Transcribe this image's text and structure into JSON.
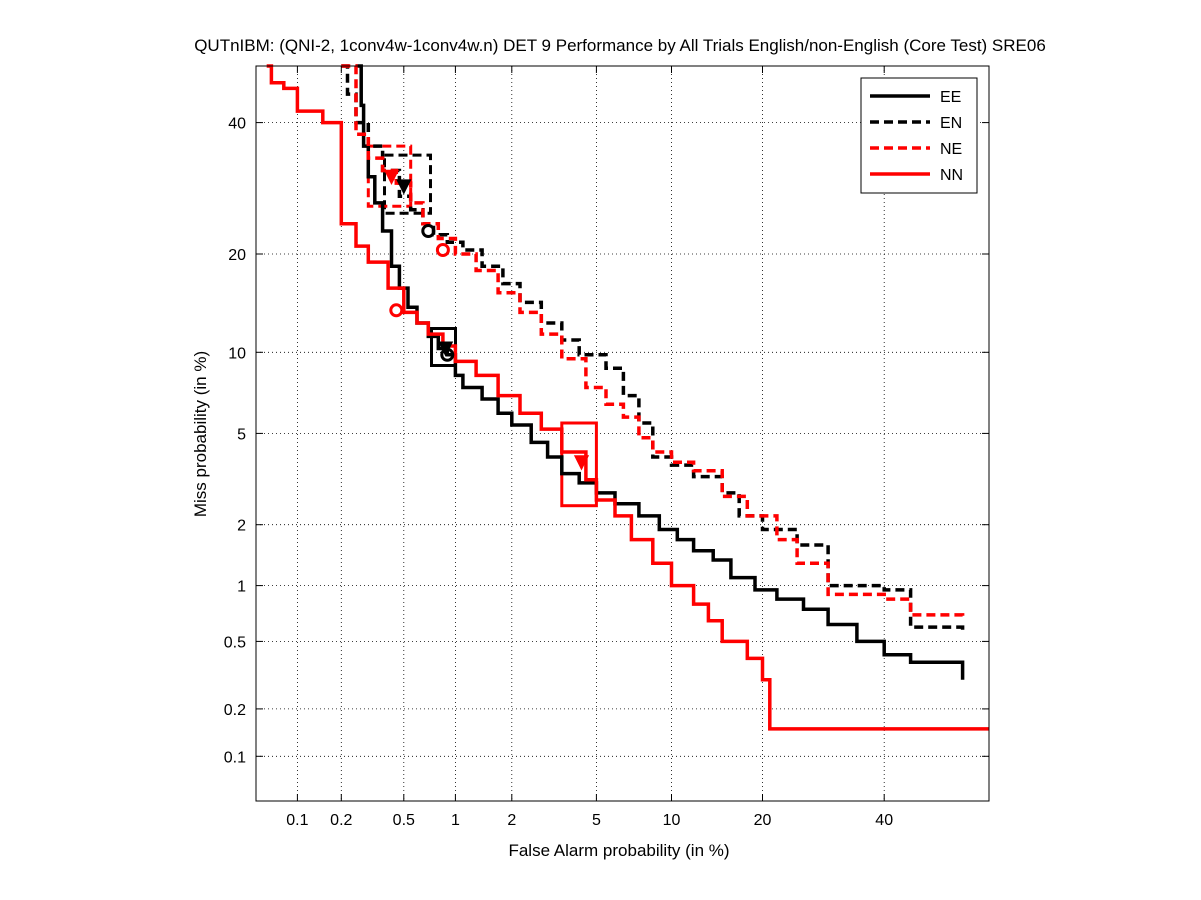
{
  "chart_data": {
    "type": "line",
    "title": "QUTnIBM: (QNI-2, 1conv4w-1conv4w.n) DET 9 Performance by All Trials English/non-English (Core Test) SRE06",
    "xlabel": "False Alarm probability (in %)",
    "ylabel": "Miss probability (in %)",
    "x_scale": "normal-deviate (probit)",
    "y_scale": "normal-deviate (probit)",
    "xlim": [
      0.05,
      60
    ],
    "ylim": [
      0.05,
      50
    ],
    "x_ticks": [
      0.1,
      0.2,
      0.5,
      1,
      2,
      5,
      10,
      20,
      40
    ],
    "x_tick_labels": [
      "0.1",
      "0.2",
      "0.5",
      "1",
      "2",
      "5",
      "10",
      "20",
      "40"
    ],
    "y_ticks": [
      0.1,
      0.2,
      0.5,
      1,
      2,
      5,
      10,
      20,
      40
    ],
    "y_tick_labels": [
      "0.1",
      "0.2",
      "0.5",
      "1",
      "2",
      "5",
      "10",
      "20",
      "40"
    ],
    "grid": true,
    "legend_position": "top-right",
    "series": [
      {
        "name": "EE",
        "color": "#000000",
        "dash": "solid",
        "points": [
          [
            0.25,
            50
          ],
          [
            0.27,
            43
          ],
          [
            0.28,
            36
          ],
          [
            0.3,
            31
          ],
          [
            0.33,
            27
          ],
          [
            0.37,
            23
          ],
          [
            0.42,
            18.5
          ],
          [
            0.47,
            16
          ],
          [
            0.53,
            14
          ],
          [
            0.6,
            12.5
          ],
          [
            0.7,
            11.3
          ],
          [
            0.8,
            10.3
          ],
          [
            0.9,
            9.8
          ],
          [
            1.0,
            8.3
          ],
          [
            1.1,
            7.5
          ],
          [
            1.4,
            6.8
          ],
          [
            1.7,
            6.0
          ],
          [
            2.0,
            5.4
          ],
          [
            2.5,
            4.6
          ],
          [
            3.0,
            4.0
          ],
          [
            3.5,
            3.4
          ],
          [
            4.2,
            3.1
          ],
          [
            5.0,
            2.8
          ],
          [
            6.0,
            2.5
          ],
          [
            7.5,
            2.2
          ],
          [
            9.0,
            1.9
          ],
          [
            10.5,
            1.7
          ],
          [
            12.0,
            1.5
          ],
          [
            14.0,
            1.35
          ],
          [
            16.0,
            1.1
          ],
          [
            19.0,
            0.95
          ],
          [
            22.0,
            0.85
          ],
          [
            26.0,
            0.75
          ],
          [
            30.0,
            0.62
          ],
          [
            35.0,
            0.5
          ],
          [
            40.0,
            0.42
          ],
          [
            45.0,
            0.38
          ],
          [
            55.0,
            0.3
          ]
        ]
      },
      {
        "name": "EN",
        "color": "#000000",
        "dash": "dashed",
        "points": [
          [
            0.2,
            50
          ],
          [
            0.22,
            45
          ],
          [
            0.25,
            40
          ],
          [
            0.3,
            36
          ],
          [
            0.37,
            32
          ],
          [
            0.47,
            28
          ],
          [
            0.55,
            26
          ],
          [
            0.65,
            24
          ],
          [
            0.75,
            22.5
          ],
          [
            0.9,
            21.5
          ],
          [
            1.1,
            20.5
          ],
          [
            1.4,
            18.5
          ],
          [
            1.8,
            16.5
          ],
          [
            2.2,
            14.5
          ],
          [
            2.8,
            12.5
          ],
          [
            3.5,
            11.0
          ],
          [
            4.2,
            9.8
          ],
          [
            5.5,
            8.8
          ],
          [
            6.5,
            7.0
          ],
          [
            7.5,
            5.5
          ],
          [
            8.5,
            4.0
          ],
          [
            10.0,
            3.7
          ],
          [
            12.0,
            3.3
          ],
          [
            15.0,
            2.8
          ],
          [
            17.0,
            2.2
          ],
          [
            20.0,
            1.9
          ],
          [
            25.0,
            1.6
          ],
          [
            30.0,
            1.0
          ],
          [
            40.0,
            0.95
          ],
          [
            45.0,
            0.6
          ],
          [
            55.0,
            0.58
          ]
        ]
      },
      {
        "name": "NE",
        "color": "#ff0000",
        "dash": "dashed",
        "points": [
          [
            0.2,
            50
          ],
          [
            0.25,
            38
          ],
          [
            0.3,
            34
          ],
          [
            0.37,
            32
          ],
          [
            0.45,
            30
          ],
          [
            0.55,
            27
          ],
          [
            0.65,
            24
          ],
          [
            0.8,
            22
          ],
          [
            1.0,
            20
          ],
          [
            1.3,
            18
          ],
          [
            1.7,
            15.5
          ],
          [
            2.2,
            13.5
          ],
          [
            2.8,
            11.5
          ],
          [
            3.5,
            9.5
          ],
          [
            4.5,
            7.5
          ],
          [
            5.5,
            6.5
          ],
          [
            6.5,
            5.8
          ],
          [
            7.5,
            4.8
          ],
          [
            8.5,
            4.2
          ],
          [
            10.0,
            3.8
          ],
          [
            12.0,
            3.5
          ],
          [
            15.0,
            2.7
          ],
          [
            18.0,
            2.2
          ],
          [
            22.0,
            1.7
          ],
          [
            25.0,
            1.3
          ],
          [
            30.0,
            0.9
          ],
          [
            40.0,
            0.85
          ],
          [
            45.0,
            0.7
          ],
          [
            55.0,
            0.68
          ]
        ]
      },
      {
        "name": "NN",
        "color": "#ff0000",
        "dash": "solid",
        "points": [
          [
            0.06,
            50
          ],
          [
            0.065,
            47
          ],
          [
            0.08,
            46
          ],
          [
            0.1,
            42
          ],
          [
            0.15,
            40
          ],
          [
            0.2,
            30
          ],
          [
            0.2,
            24
          ],
          [
            0.25,
            21
          ],
          [
            0.3,
            19
          ],
          [
            0.4,
            16
          ],
          [
            0.5,
            13.5
          ],
          [
            0.6,
            12.5
          ],
          [
            0.7,
            11.5
          ],
          [
            0.85,
            10.5
          ],
          [
            1.0,
            9.3
          ],
          [
            1.3,
            8.3
          ],
          [
            1.7,
            7.0
          ],
          [
            2.2,
            6.0
          ],
          [
            2.8,
            5.2
          ],
          [
            3.5,
            4.2
          ],
          [
            4.5,
            3.2
          ],
          [
            5.0,
            2.6
          ],
          [
            6.0,
            2.2
          ],
          [
            7.0,
            1.7
          ],
          [
            8.5,
            1.3
          ],
          [
            10.0,
            1.0
          ],
          [
            12.0,
            0.8
          ],
          [
            13.5,
            0.65
          ],
          [
            15.0,
            0.5
          ],
          [
            18.0,
            0.4
          ],
          [
            20.0,
            0.3
          ],
          [
            21.0,
            0.15
          ],
          [
            60.0,
            0.15
          ]
        ]
      }
    ],
    "markers": [
      {
        "series": "EN",
        "kind": "triangle",
        "x": 0.5,
        "y": 29.5,
        "color": "#000000"
      },
      {
        "series": "EN",
        "kind": "circle",
        "x": 0.7,
        "y": 23.0,
        "color": "#000000"
      },
      {
        "series": "NE",
        "kind": "triangle",
        "x": 0.42,
        "y": 31.0,
        "color": "#ff0000"
      },
      {
        "series": "NE",
        "kind": "circle",
        "x": 0.85,
        "y": 20.5,
        "color": "#ff0000"
      },
      {
        "series": "EE",
        "kind": "triangle",
        "x": 0.88,
        "y": 10.3,
        "color": "#000000"
      },
      {
        "series": "EE",
        "kind": "circle",
        "x": 0.9,
        "y": 9.8,
        "color": "#000000"
      },
      {
        "series": "NN",
        "kind": "circle",
        "x": 0.45,
        "y": 13.7,
        "color": "#ff0000"
      },
      {
        "series": "NN",
        "kind": "triangle",
        "x": 4.3,
        "y": 3.8,
        "color": "#ff0000"
      }
    ],
    "confidence_boxes": [
      {
        "series": "EN",
        "x_range": [
          0.38,
          0.72
        ],
        "y_range": [
          25.5,
          34.5
        ],
        "color": "#000000",
        "dash": "dashed"
      },
      {
        "series": "NE",
        "x_range": [
          0.3,
          0.55
        ],
        "y_range": [
          26.5,
          36.0
        ],
        "color": "#ff0000",
        "dash": "dashed"
      },
      {
        "series": "EE",
        "x_range": [
          0.73,
          1.0
        ],
        "y_range": [
          9.0,
          12.0
        ],
        "color": "#000000",
        "dash": "solid"
      },
      {
        "series": "NN",
        "x_range": [
          3.5,
          5.0
        ],
        "y_range": [
          2.45,
          5.5
        ],
        "color": "#ff0000",
        "dash": "solid"
      }
    ]
  }
}
